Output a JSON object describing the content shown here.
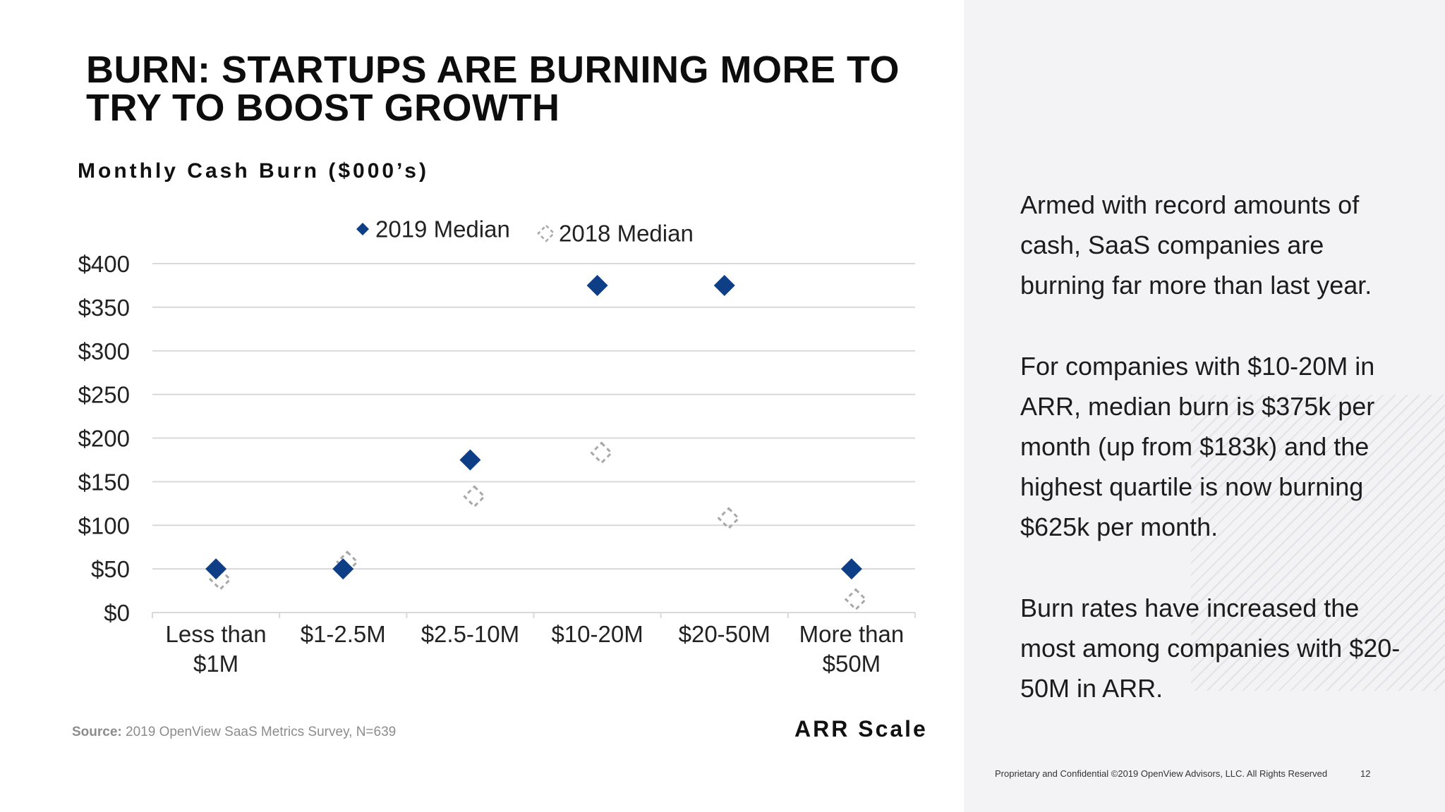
{
  "slide": {
    "title_lines": [
      "BURN: STARTUPS ARE BURNING MORE TO",
      "TRY TO BOOST GROWTH"
    ],
    "chart_heading": "Monthly Cash Burn ($000’s)",
    "x_axis_title": "ARR Scale",
    "source_label": "Source:",
    "source_text": "2019 OpenView SaaS Metrics Survey, N=639",
    "footer": "Proprietary and Confidential ©2019 OpenView Advisors, LLC. All Rights Reserved",
    "page_number": "12",
    "narrative": [
      "Armed with record amounts of cash, SaaS companies are burning far more than last year.",
      "For companies with $10-20M in ARR, median burn is $375k per month (up from $183k) and the highest quartile is now burning $625k per month.",
      "Burn rates have increased the most among companies with $20-50M in ARR."
    ]
  },
  "colors": {
    "series_2019": "#0e3f86",
    "series_2018": "#a8a8a8",
    "gridline": "#d9d9d9",
    "panel_bg": "#f3f3f5"
  },
  "chart_data": {
    "type": "scatter",
    "title": "Monthly Cash Burn ($000’s)",
    "xlabel": "ARR Scale",
    "ylabel": "",
    "categories": [
      [
        "Less than",
        "$1M"
      ],
      [
        "$1-2.5M"
      ],
      [
        "$2.5-10M"
      ],
      [
        "$10-20M"
      ],
      [
        "$20-50M"
      ],
      [
        "More than",
        "$50M"
      ]
    ],
    "ylim": [
      0,
      400
    ],
    "yticks": [
      0,
      50,
      100,
      150,
      200,
      250,
      300,
      350,
      400
    ],
    "ytick_labels": [
      "$0",
      "$50",
      "$100",
      "$150",
      "$200",
      "$250",
      "$300",
      "$350",
      "$400"
    ],
    "grid": true,
    "legend_position": "top",
    "series": [
      {
        "name": "2019 Median",
        "marker": "diamond-filled",
        "values": [
          50,
          50,
          175,
          375,
          375,
          50
        ]
      },
      {
        "name": "2018 Median",
        "marker": "diamond-dashed",
        "values": [
          38,
          58,
          133,
          183,
          108,
          15
        ]
      }
    ]
  }
}
